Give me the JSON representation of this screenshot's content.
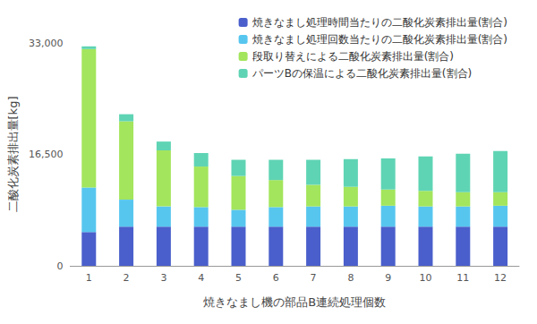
{
  "chart_data": {
    "type": "bar",
    "stacked": true,
    "x_label": "焼きなまし機の部品B連続処理個数",
    "y_label": "二酸化炭素排出量[kg]",
    "categories": [
      "1",
      "2",
      "3",
      "4",
      "5",
      "6",
      "7",
      "8",
      "9",
      "10",
      "11",
      "12"
    ],
    "series": [
      {
        "name": "焼きなまし処理時間当たりの二酸化炭素排出量(割合)",
        "color": "#4a5fcb",
        "values": [
          5000,
          5800,
          5800,
          5800,
          5800,
          5800,
          5800,
          5800,
          5800,
          5800,
          5800,
          5800
        ]
      },
      {
        "name": "焼きなまし処理回数当たりの二酸化炭素排出量(割合)",
        "color": "#57c6ef",
        "values": [
          6600,
          4000,
          3000,
          2900,
          2500,
          2900,
          3000,
          3000,
          3100,
          3000,
          3000,
          3100
        ]
      },
      {
        "name": "段取り替えによる二酸化炭素排出量(割合)",
        "color": "#a3e55c",
        "values": [
          20500,
          11600,
          8300,
          6000,
          5000,
          4000,
          3200,
          2900,
          2400,
          2300,
          2100,
          2000
        ]
      },
      {
        "name": "パーツBの保温による二酸化炭素排出量(割合)",
        "color": "#5fd4b4",
        "values": [
          400,
          1050,
          1300,
          2000,
          2400,
          3000,
          3700,
          4100,
          4600,
          5100,
          5700,
          6100
        ]
      }
    ],
    "ylim": [
      0,
      33000
    ],
    "yticks": [
      0,
      16500,
      33000
    ],
    "grid": false,
    "legend": "top-right"
  }
}
